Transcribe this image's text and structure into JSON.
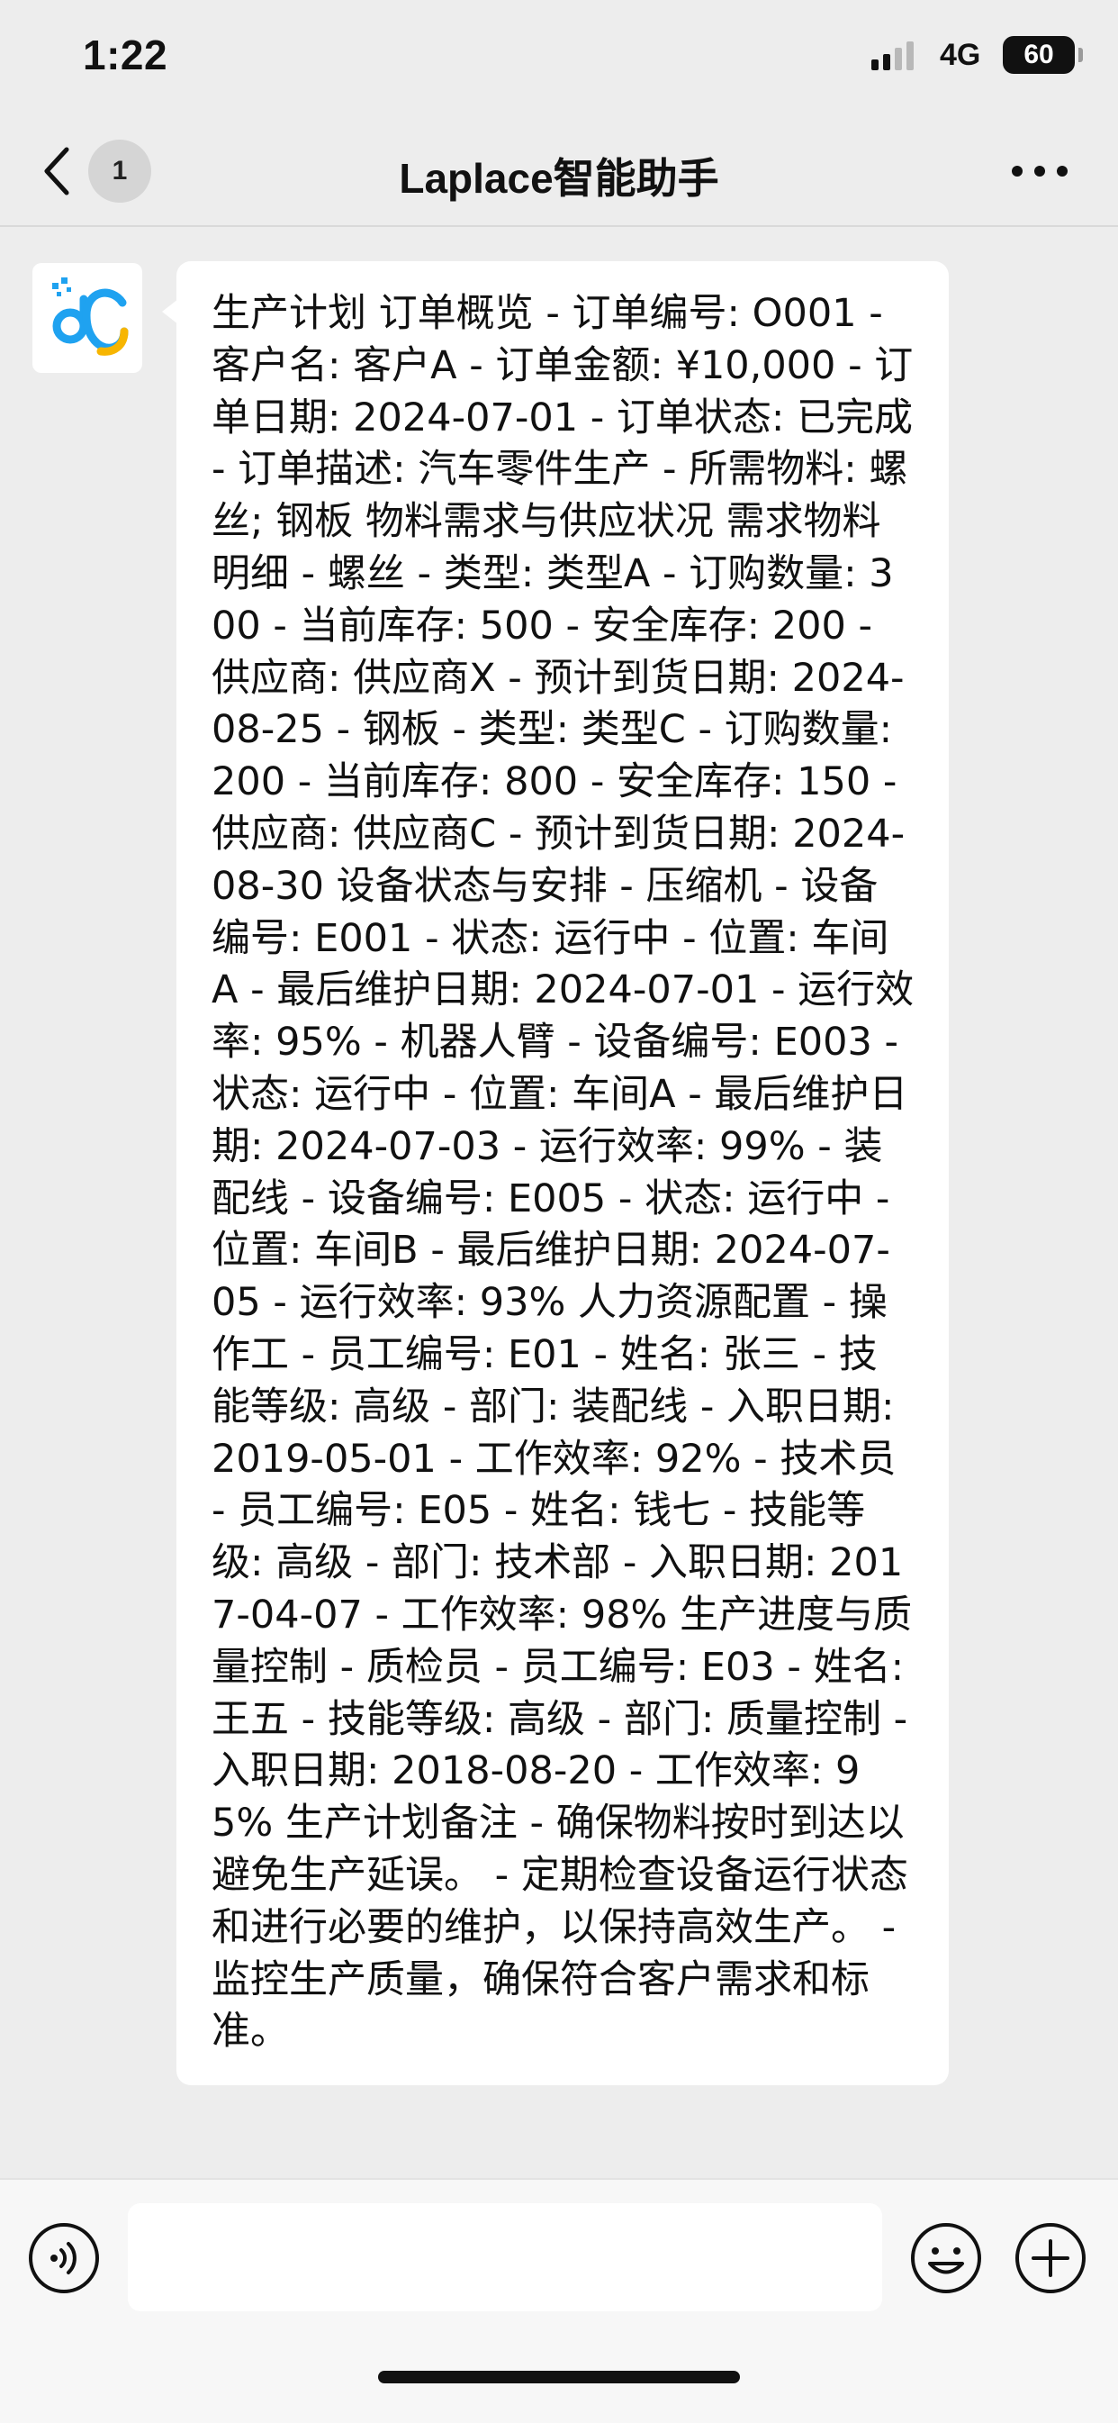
{
  "status_bar": {
    "time": "1:22",
    "network": "4G",
    "battery": "60"
  },
  "nav": {
    "unread_count": "1",
    "title": "Laplace智能助手"
  },
  "messages": [
    {
      "sender": "assistant",
      "text": "生产计划 订单概览 - 订单编号: O001 - 客户名: 客户A - 订单金额: ¥10,000 - 订单日期: 2024-07-01 - 订单状态: 已完成 - 订单描述: 汽车零件生产 - 所需物料: 螺丝; 钢板 物料需求与供应状况 需求物料明细 - 螺丝 - 类型: 类型A - 订购数量: 300 - 当前库存: 500 - 安全库存: 200 - 供应商: 供应商X - 预计到货日期: 2024-08-25 - 钢板 - 类型: 类型C - 订购数量: 200 - 当前库存: 800 - 安全库存: 150 - 供应商: 供应商C - 预计到货日期: 2024-08-30 设备状态与安排 - 压缩机 - 设备编号: E001 - 状态: 运行中 - 位置: 车间A - 最后维护日期: 2024-07-01 - 运行效率: 95% - 机器人臂 - 设备编号: E003 - 状态: 运行中 - 位置: 车间A - 最后维护日期: 2024-07-03 - 运行效率: 99% - 装配线 - 设备编号: E005 - 状态: 运行中 - 位置: 车间B - 最后维护日期: 2024-07-05 - 运行效率: 93% 人力资源配置 - 操作工 - 员工编号: E01 - 姓名: 张三 - 技能等级: 高级 - 部门: 装配线 - 入职日期: 2019-05-01 - 工作效率: 92% - 技术员 - 员工编号: E05 - 姓名: 钱七 - 技能等级: 高级 - 部门: 技术部 - 入职日期: 2017-04-07 - 工作效率: 98% 生产进度与质量控制 - 质检员 - 员工编号: E03 - 姓名: 王五 - 技能等级: 高级 - 部门: 质量控制 - 入职日期: 2018-08-20 - 工作效率: 95% 生产计划备注 - 确保物料按时到达以避免生产延误。 - 定期检查设备运行状态和进行必要的维护，以保持高效生产。 - 监控生产质量，确保符合客户需求和标准。"
    }
  ],
  "input": {
    "placeholder": ""
  },
  "colors": {
    "background": "#ededed",
    "bubble": "#ffffff",
    "logo_blue": "#1fa2f0",
    "logo_yellow": "#f7b500"
  }
}
